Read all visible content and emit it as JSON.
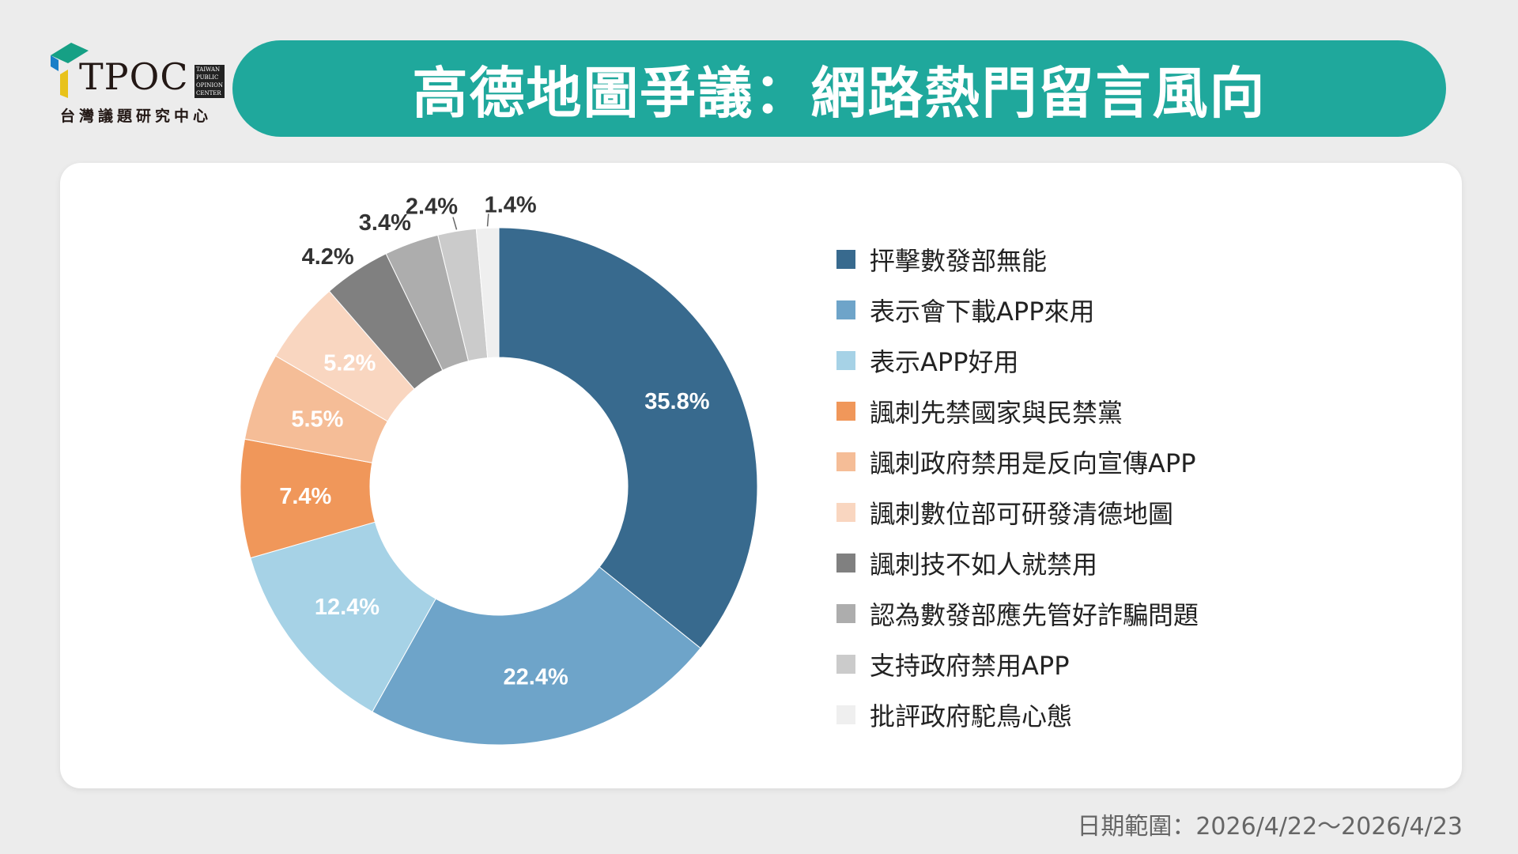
{
  "header": {
    "logo_text": "TPOC",
    "logo_subtitle": "台灣議題研究中心",
    "logo_english": "TAIWAN PUBLIC OPINION CENTER",
    "title": "高德地圖爭議：網路熱門留言風向"
  },
  "footer": {
    "date_range": "日期範圍：2026/4/22～2026/4/23"
  },
  "chart_data": {
    "type": "pie",
    "donut": true,
    "categories": [
      "抨擊數發部無能",
      "表示會下載APP來用",
      "表示APP好用",
      "諷刺先禁國家與民禁黨",
      "諷刺政府禁用是反向宣傳APP",
      "諷刺數位部可研發清德地圖",
      "諷刺技不如人就禁用",
      "認為數發部應先管好詐騙問題",
      "支持政府禁用APP",
      "批評政府駝鳥心態"
    ],
    "values": [
      35.8,
      22.4,
      12.4,
      7.4,
      5.5,
      5.2,
      4.2,
      3.4,
      2.4,
      1.4
    ],
    "labels": [
      "35.8%",
      "22.4%",
      "12.4%",
      "7.4%",
      "5.5%",
      "5.2%",
      "4.2%",
      "3.4%",
      "2.4%",
      "1.4%"
    ],
    "colors": [
      "#386a8e",
      "#6ea4c9",
      "#a6d2e6",
      "#f0975a",
      "#f5bd97",
      "#f9d6c0",
      "#808080",
      "#adadad",
      "#cbcbcb",
      "#efefef"
    ],
    "legend_position": "right"
  },
  "accent_color": "#1fa89c"
}
